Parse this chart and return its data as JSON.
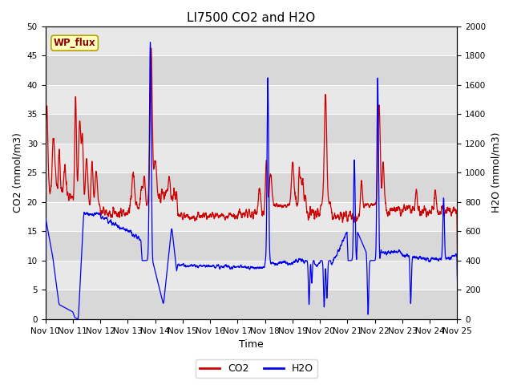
{
  "title": "LI7500 CO2 and H2O",
  "xlabel": "Time",
  "ylabel_left": "CO2 (mmol/m3)",
  "ylabel_right": "H2O (mmol/m3)",
  "ylim_left": [
    0,
    50
  ],
  "ylim_right": [
    0,
    2000
  ],
  "yticks_left": [
    0,
    5,
    10,
    15,
    20,
    25,
    30,
    35,
    40,
    45,
    50
  ],
  "yticks_right": [
    0,
    200,
    400,
    600,
    800,
    1000,
    1200,
    1400,
    1600,
    1800,
    2000
  ],
  "xtick_labels": [
    "Nov 10",
    "Nov 11",
    "Nov 12",
    "Nov 13",
    "Nov 14",
    "Nov 15",
    "Nov 16",
    "Nov 17",
    "Nov 18",
    "Nov 19",
    "Nov 20",
    "Nov 21",
    "Nov 22",
    "Nov 23",
    "Nov 24",
    "Nov 25"
  ],
  "co2_color": "#CC0000",
  "h2o_color": "#0000EE",
  "background_color": "#E8E8E8",
  "stripe_color": "#D0D0D0",
  "annotation_text": "WP_flux",
  "legend_co2": "CO2",
  "legend_h2o": "H2O",
  "title_fontsize": 11,
  "axis_label_fontsize": 9,
  "tick_fontsize": 7.5
}
